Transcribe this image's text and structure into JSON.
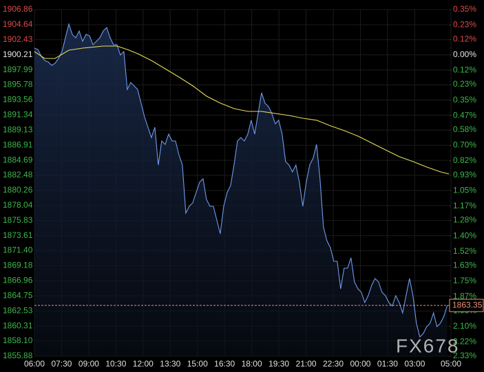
{
  "chart_data": {
    "type": "line",
    "watermark": "FX678",
    "current_price": 1863.35,
    "current_color": "#e8907a",
    "xlim": [
      0,
      23
    ],
    "xticks": [
      {
        "value": 0,
        "label": "06:00"
      },
      {
        "value": 1.5,
        "label": "07:30"
      },
      {
        "value": 3,
        "label": "09:00"
      },
      {
        "value": 4.5,
        "label": "10:30"
      },
      {
        "value": 6,
        "label": "12:00"
      },
      {
        "value": 7.5,
        "label": "13:30"
      },
      {
        "value": 9,
        "label": "15:00"
      },
      {
        "value": 10.5,
        "label": "16:30"
      },
      {
        "value": 12,
        "label": "18:00"
      },
      {
        "value": 13.5,
        "label": "19:30"
      },
      {
        "value": 15,
        "label": "21:00"
      },
      {
        "value": 16.5,
        "label": "22:30"
      },
      {
        "value": 18,
        "label": "00:00"
      },
      {
        "value": 19.5,
        "label": "01:30"
      },
      {
        "value": 21,
        "label": "03:00"
      },
      {
        "value": 23,
        "label": "05:00"
      }
    ],
    "ylim": [
      1855.88,
      1906.86
    ],
    "yticks": [
      1906.86,
      1904.64,
      1902.43,
      1900.21,
      1897.99,
      1895.78,
      1893.56,
      1891.34,
      1889.13,
      1886.91,
      1884.69,
      1882.48,
      1880.26,
      1878.04,
      1875.83,
      1873.61,
      {
        "value": 1871.4,
        "label": "1871.40"
      },
      1869.18,
      1866.96,
      1864.75,
      1862.53,
      1860.31,
      {
        "value": 1858.1,
        "label": "1858.10"
      },
      1855.88
    ],
    "y2lim": [
      -2.33,
      0.35
    ],
    "y2ticks": [
      {
        "value": 0.35,
        "label": "0.35%"
      },
      {
        "value": 0.23,
        "label": "0.23%"
      },
      {
        "value": 0.12,
        "label": "0.12%"
      },
      {
        "value": 0,
        "label": "0.00%"
      },
      {
        "value": -0.12,
        "label": "0.12%"
      },
      {
        "value": -0.23,
        "label": "0.23%"
      },
      {
        "value": -0.35,
        "label": "0.35%"
      },
      {
        "value": -0.47,
        "label": "0.47%"
      },
      {
        "value": -0.58,
        "label": "0.58%"
      },
      {
        "value": -0.7,
        "label": "0.70%"
      },
      {
        "value": -0.82,
        "label": "0.82%"
      },
      {
        "value": -0.93,
        "label": "0.93%"
      },
      {
        "value": -1.05,
        "label": "1.05%"
      },
      {
        "value": -1.17,
        "label": "1.17%"
      },
      {
        "value": -1.28,
        "label": "1.28%"
      },
      {
        "value": -1.4,
        "label": "1.40%"
      },
      {
        "value": -1.52,
        "label": "1.52%"
      },
      {
        "value": -1.63,
        "label": "1.63%"
      },
      {
        "value": -1.75,
        "label": "1.75%"
      },
      {
        "value": -1.87,
        "label": "1.87%"
      },
      {
        "value": -1.98,
        "label": "1.98%"
      },
      {
        "value": -2.1,
        "label": "2.10%"
      },
      {
        "value": -2.22,
        "label": "2.22%"
      },
      {
        "value": -2.33,
        "label": "2.33%"
      }
    ],
    "up_color": "#e04848",
    "down_color": "#3cb84a",
    "flat_color": "#e8e8e8",
    "grid": true,
    "series": [
      {
        "color": "#6f9cf0",
        "fill": true,
        "x": [
          0,
          0.19,
          0.38,
          0.57,
          0.76,
          0.95,
          1.14,
          1.33,
          1.52,
          1.71,
          1.9,
          2.09,
          2.28,
          2.47,
          2.66,
          2.85,
          3.04,
          3.23,
          3.42,
          3.61,
          3.8,
          3.99,
          4.18,
          4.37,
          4.56,
          4.75,
          4.94,
          5.13,
          5.32,
          5.51,
          5.7,
          5.89,
          6.08,
          6.27,
          6.46,
          6.65,
          6.84,
          7.03,
          7.22,
          7.41,
          7.6,
          7.79,
          7.98,
          8.17,
          8.36,
          8.55,
          8.74,
          8.93,
          9.12,
          9.31,
          9.5,
          9.69,
          9.88,
          10.07,
          10.26,
          10.45,
          10.64,
          10.83,
          11.02,
          11.21,
          11.4,
          11.59,
          11.78,
          11.97,
          12.16,
          12.35,
          12.54,
          12.73,
          12.92,
          13.11,
          13.3,
          13.49,
          13.68,
          13.87,
          14.06,
          14.25,
          14.44,
          14.63,
          14.82,
          15.01,
          15.2,
          15.39,
          15.58,
          15.77,
          15.96,
          16.15,
          16.34,
          16.53,
          16.72,
          16.91,
          17.1,
          17.29,
          17.48,
          17.67,
          17.86,
          18.05,
          18.24,
          18.43,
          18.62,
          18.81,
          19.0,
          19.19,
          19.38,
          19.57,
          19.76,
          19.95,
          20.14,
          20.33,
          20.52,
          20.71,
          20.9,
          21.09,
          21.28,
          21.47,
          21.66,
          21.85,
          22.04,
          22.23,
          22.42,
          22.61,
          22.8
        ],
        "values": [
          1901.2,
          1900.99,
          1899.98,
          1899.37,
          1899.17,
          1898.67,
          1898.97,
          1899.68,
          1900.69,
          1902.71,
          1904.74,
          1903.22,
          1902.71,
          1903.72,
          1902.21,
          1903.22,
          1903.02,
          1901.7,
          1902.21,
          1902.71,
          1903.72,
          1904.23,
          1902.71,
          1901.7,
          1901.7,
          1900.18,
          1900.69,
          1895.13,
          1896.14,
          1895.63,
          1895.13,
          1893.1,
          1891.08,
          1889.56,
          1888.05,
          1889.56,
          1884.0,
          1887.54,
          1887.03,
          1888.55,
          1887.54,
          1887.54,
          1885.52,
          1884.0,
          1876.92,
          1877.93,
          1878.44,
          1879.95,
          1881.47,
          1881.98,
          1878.94,
          1877.93,
          1877.93,
          1875.91,
          1873.89,
          1877.93,
          1879.95,
          1880.97,
          1884.0,
          1887.54,
          1888.05,
          1887.54,
          1888.55,
          1890.58,
          1888.55,
          1891.59,
          1894.62,
          1893.1,
          1892.6,
          1891.59,
          1890.07,
          1890.58,
          1888.55,
          1884.51,
          1884.0,
          1882.99,
          1884.0,
          1881.47,
          1877.93,
          1881.47,
          1884.0,
          1885.01,
          1887.03,
          1881.98,
          1874.9,
          1872.87,
          1871.86,
          1869.84,
          1869.84,
          1865.79,
          1868.83,
          1868.83,
          1870.35,
          1866.8,
          1865.79,
          1865.29,
          1863.77,
          1864.78,
          1866.3,
          1867.31,
          1866.8,
          1865.29,
          1864.78,
          1863.77,
          1863.26,
          1864.78,
          1863.77,
          1862.25,
          1864.78,
          1867.31,
          1864.78,
          1860.74,
          1858.71,
          1859.22,
          1860.23,
          1860.74,
          1862.25,
          1860.23,
          1860.74,
          1861.75,
          1863.35
        ]
      },
      {
        "color": "#e6de5a",
        "fill": false,
        "x": [
          0,
          0.57,
          1.14,
          1.9,
          2.66,
          3.8,
          4.56,
          5.13,
          5.7,
          6.46,
          7.22,
          7.98,
          8.75,
          9.51,
          10.27,
          11.03,
          11.79,
          12.55,
          13.31,
          14.07,
          14.83,
          15.59,
          16.35,
          17.11,
          17.87,
          18.63,
          19.39,
          20.15,
          20.91,
          21.67,
          22.43,
          22.89
        ],
        "values": [
          1900.69,
          1899.68,
          1899.68,
          1900.89,
          1901.2,
          1901.5,
          1901.5,
          1900.99,
          1900.39,
          1899.37,
          1898.16,
          1896.95,
          1895.63,
          1894.11,
          1893.1,
          1892.29,
          1891.89,
          1891.89,
          1891.59,
          1891.28,
          1890.88,
          1890.58,
          1889.77,
          1889.06,
          1888.25,
          1887.24,
          1886.23,
          1885.22,
          1884.51,
          1883.7,
          1882.99,
          1882.68
        ]
      }
    ]
  }
}
